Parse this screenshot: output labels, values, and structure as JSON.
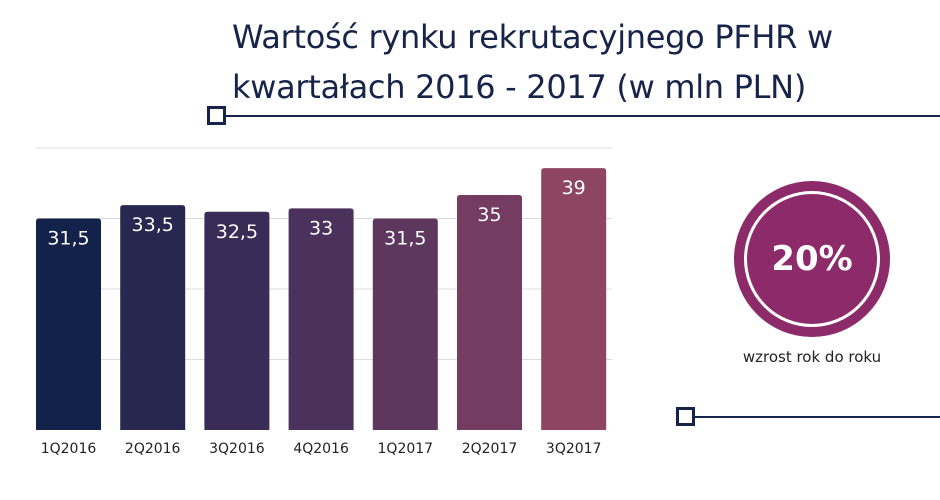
{
  "chart_data": {
    "type": "bar",
    "title": "Wartość rynku rekrutacyjnego PFHR w kwartałach 2016 - 2017 (w mln PLN)",
    "categories": [
      "1Q2016",
      "2Q2016",
      "3Q2016",
      "4Q2016",
      "1Q2017",
      "2Q2017",
      "3Q2017"
    ],
    "values": [
      31.5,
      33.5,
      32.5,
      33,
      31.5,
      35,
      39
    ],
    "value_labels": [
      "31,5",
      "33,5",
      "32,5",
      "33",
      "31,5",
      "35",
      "39"
    ],
    "ylim": [
      0,
      42
    ],
    "grid": true,
    "bar_colors": [
      "#13224a",
      "#272750",
      "#3a2c56",
      "#4b325c",
      "#5e375e",
      "#733c60",
      "#8e4561"
    ],
    "grid_color": "#dcdcdc"
  },
  "badge": {
    "value": "20%",
    "caption": "wzrost rok do roku",
    "color": "#8d2a6a"
  },
  "colors": {
    "navy": "#17244a"
  }
}
